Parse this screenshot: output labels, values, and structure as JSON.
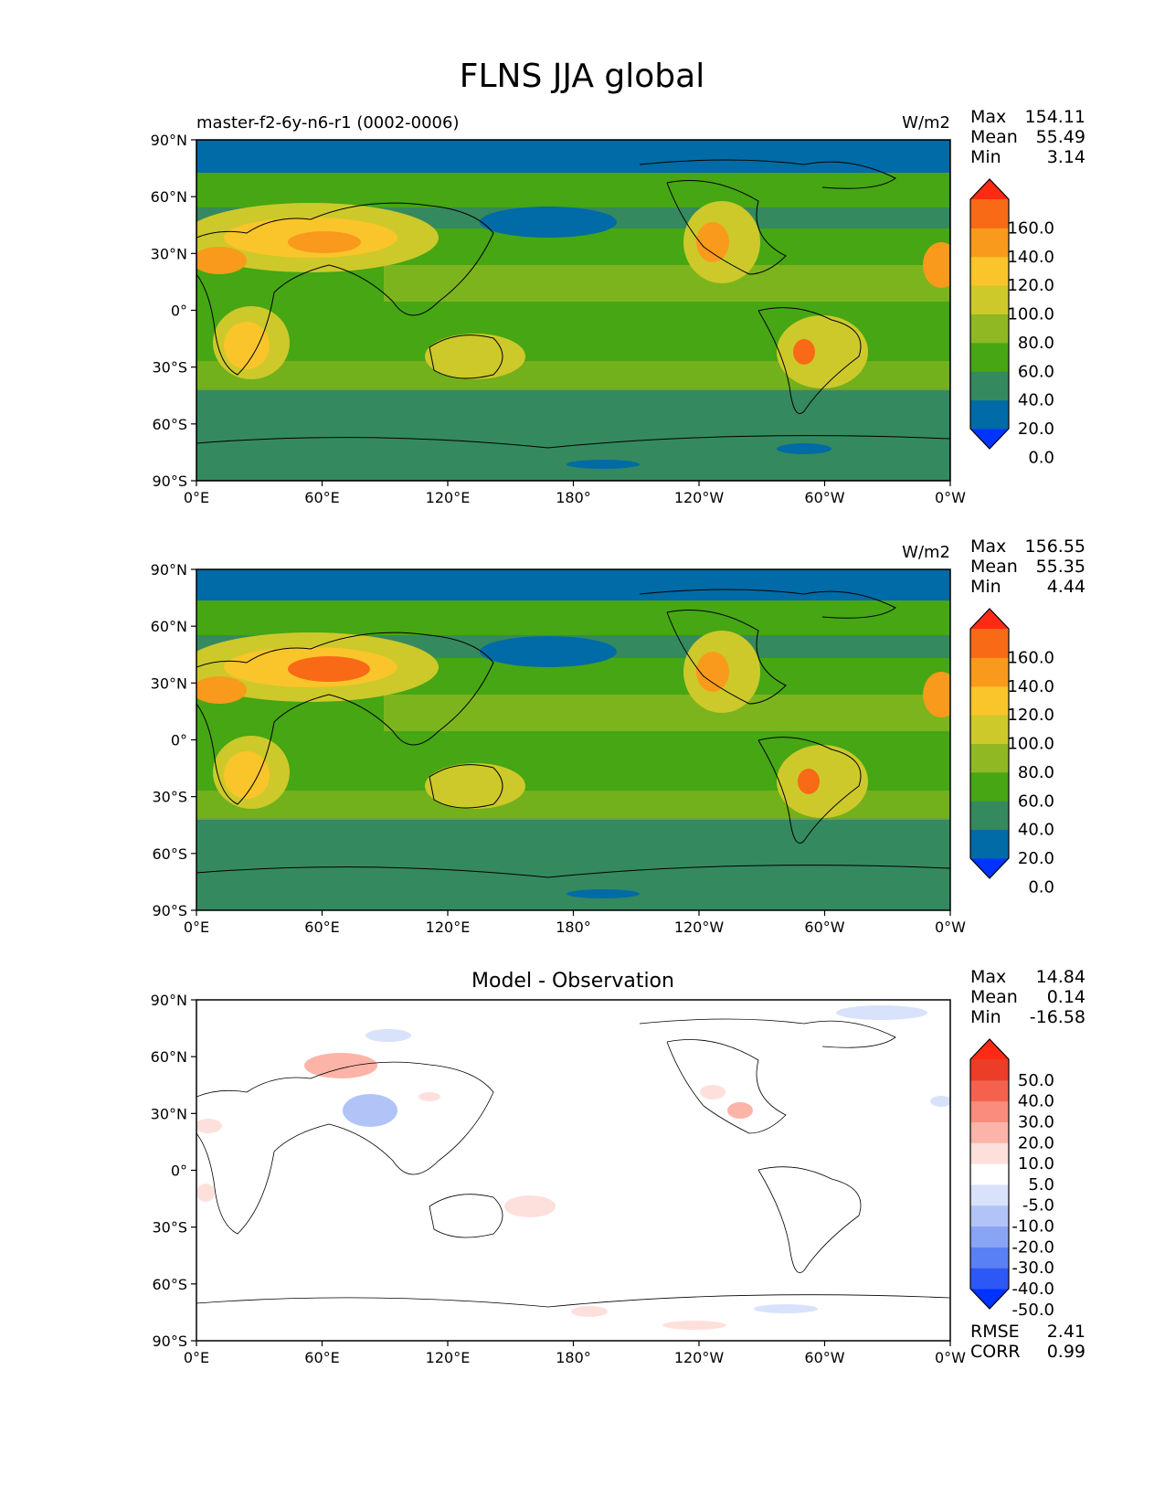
{
  "figure": {
    "title": "FLNS JJA global"
  },
  "colors": {
    "abs_levels": [
      "#0033ff",
      "#006ba6",
      "#35895e",
      "#46a614",
      "#8fb822",
      "#cdc92a",
      "#f9c52a",
      "#f99a1c",
      "#f86a16",
      "#ff2a14"
    ],
    "diff_levels": [
      "#0033ff",
      "#2e58f5",
      "#5a80f5",
      "#8aa4f5",
      "#b2c4f7",
      "#d8e2fb",
      "#ffffff",
      "#fde0dc",
      "#fcb4a8",
      "#f98c7c",
      "#f4624e",
      "#ec3d28",
      "#ff2a14"
    ],
    "coastline": "#000000"
  },
  "chart_data": [
    {
      "type": "heatmap",
      "title": "",
      "left_title": "master-f2-6y-n6-r1 (0002-0006)",
      "units": "W/m2",
      "stats": [
        {
          "label": "Max",
          "value": "154.11"
        },
        {
          "label": "Mean",
          "value": "55.49"
        },
        {
          "label": "Min",
          "value": "3.14"
        }
      ],
      "colorbar_levels": [
        "160.0",
        "140.0",
        "120.0",
        "100.0",
        "80.0",
        "60.0",
        "40.0",
        "20.0",
        "0.0"
      ],
      "x_ticks": [
        "0°E",
        "60°E",
        "120°E",
        "180°",
        "120°W",
        "60°W",
        "0°W"
      ],
      "y_ticks": [
        "90°N",
        "60°N",
        "30°N",
        "0°",
        "30°S",
        "60°S",
        "90°S"
      ],
      "xlim": [
        0,
        360
      ],
      "ylim": [
        -90,
        90
      ]
    },
    {
      "type": "heatmap",
      "title": "",
      "left_title": "",
      "units": "W/m2",
      "stats": [
        {
          "label": "Max",
          "value": "156.55"
        },
        {
          "label": "Mean",
          "value": "55.35"
        },
        {
          "label": "Min",
          "value": "4.44"
        }
      ],
      "colorbar_levels": [
        "160.0",
        "140.0",
        "120.0",
        "100.0",
        "80.0",
        "60.0",
        "40.0",
        "20.0",
        "0.0"
      ],
      "x_ticks": [
        "0°E",
        "60°E",
        "120°E",
        "180°",
        "120°W",
        "60°W",
        "0°W"
      ],
      "y_ticks": [
        "90°N",
        "60°N",
        "30°N",
        "0°",
        "30°S",
        "60°S",
        "90°S"
      ],
      "xlim": [
        0,
        360
      ],
      "ylim": [
        -90,
        90
      ]
    },
    {
      "type": "heatmap",
      "title": "Model - Observation",
      "left_title": "",
      "units": "",
      "stats": [
        {
          "label": "Max",
          "value": "14.84"
        },
        {
          "label": "Mean",
          "value": "0.14"
        },
        {
          "label": "Min",
          "value": "-16.58"
        }
      ],
      "colorbar_levels": [
        "50.0",
        "40.0",
        "30.0",
        "20.0",
        "10.0",
        "5.0",
        "-5.0",
        "-10.0",
        "-20.0",
        "-30.0",
        "-40.0",
        "-50.0"
      ],
      "x_ticks": [
        "0°E",
        "60°E",
        "120°E",
        "180°",
        "120°W",
        "60°W",
        "0°W"
      ],
      "y_ticks": [
        "90°N",
        "60°N",
        "30°N",
        "0°",
        "30°S",
        "60°S",
        "90°S"
      ],
      "xlim": [
        0,
        360
      ],
      "ylim": [
        -90,
        90
      ],
      "metrics": [
        {
          "label": "RMSE",
          "value": "2.41"
        },
        {
          "label": "CORR",
          "value": "0.99"
        }
      ]
    }
  ]
}
